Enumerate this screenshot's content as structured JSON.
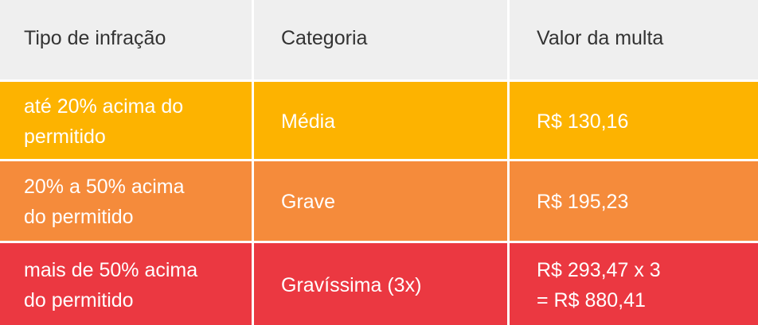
{
  "table": {
    "headers": {
      "type": "Tipo de infração",
      "category": "Categoria",
      "fine": "Valor da multa"
    },
    "rows": [
      {
        "type": "até 20% acima do\npermitido",
        "category": "Média",
        "fine": "R$ 130,16",
        "color": "#fdb300"
      },
      {
        "type": "20% a 50% acima\ndo permitido",
        "category": "Grave",
        "fine": "R$ 195,23",
        "color": "#f58b3b"
      },
      {
        "type": "mais de 50% acima\ndo permitido",
        "category": "Gravíssima (3x)",
        "fine": "R$ 293,47 x 3\n= R$ 880,41",
        "color": "#eb3841"
      }
    ],
    "header_color": "#efefef"
  }
}
